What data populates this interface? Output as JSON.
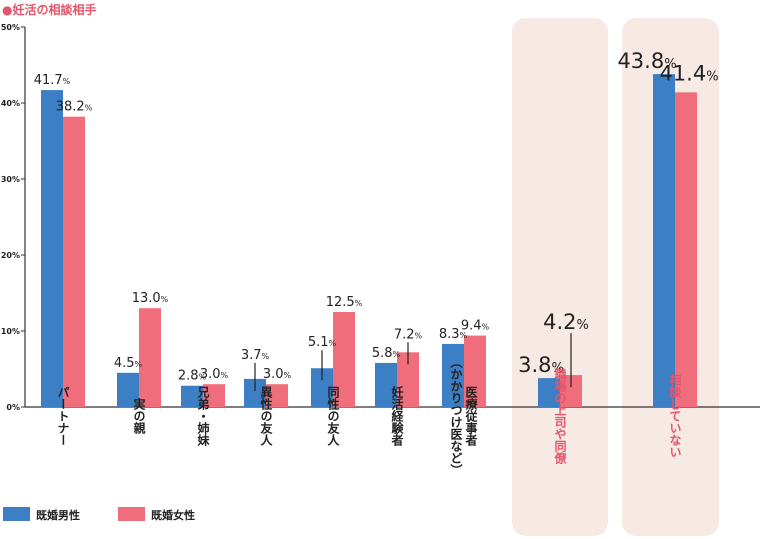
{
  "chart_data": {
    "type": "bar",
    "title": "●妊活の相談相手",
    "xlabel": "",
    "ylabel": "",
    "ylim": [
      0,
      50
    ],
    "yticks": [
      "0%",
      "10%",
      "20%",
      "30%",
      "40%",
      "50%"
    ],
    "grid": false,
    "legend_position": "bottom-left",
    "categories": [
      {
        "label": "パートナー",
        "line2": "",
        "highlight": false
      },
      {
        "label": "実の親",
        "line2": "",
        "highlight": false
      },
      {
        "label": "兄弟・姉妹",
        "line2": "",
        "highlight": false
      },
      {
        "label": "異性の友人",
        "line2": "",
        "highlight": false
      },
      {
        "label": "同性の友人",
        "line2": "",
        "highlight": false
      },
      {
        "label": "妊活経験者",
        "line2": "",
        "highlight": false
      },
      {
        "label": "医療従事者",
        "line2": "（かかりつけ医など）",
        "highlight": false
      },
      {
        "label": "職場の上司や同僚",
        "line2": "",
        "highlight": true
      },
      {
        "label": "相談していない",
        "line2": "",
        "highlight": true
      }
    ],
    "series": [
      {
        "name": "既婚男性",
        "color": "#3d7fc4",
        "values": [
          41.7,
          4.5,
          2.8,
          3.7,
          5.1,
          5.8,
          8.3,
          3.8,
          43.8
        ],
        "labels": [
          "41.7",
          "4.5",
          "2.8",
          "3.7",
          "5.1",
          "5.8",
          "8.3",
          "3.8",
          "43.8"
        ]
      },
      {
        "name": "既婚女性",
        "color": "#f06e7c",
        "values": [
          38.2,
          13.0,
          3.0,
          3.0,
          12.5,
          7.2,
          9.4,
          4.2,
          41.4
        ],
        "labels": [
          "38.2",
          "13.0",
          "3.0",
          "3.0",
          "12.5",
          "7.2",
          "9.4",
          "4.2",
          "41.4"
        ]
      }
    ],
    "unit": "%",
    "colors": {
      "highlight_bg": "#f7e9e4",
      "highlight_text": "#e5556a",
      "title": "#e5556a",
      "axis": "#333333",
      "text": "#222222"
    }
  }
}
